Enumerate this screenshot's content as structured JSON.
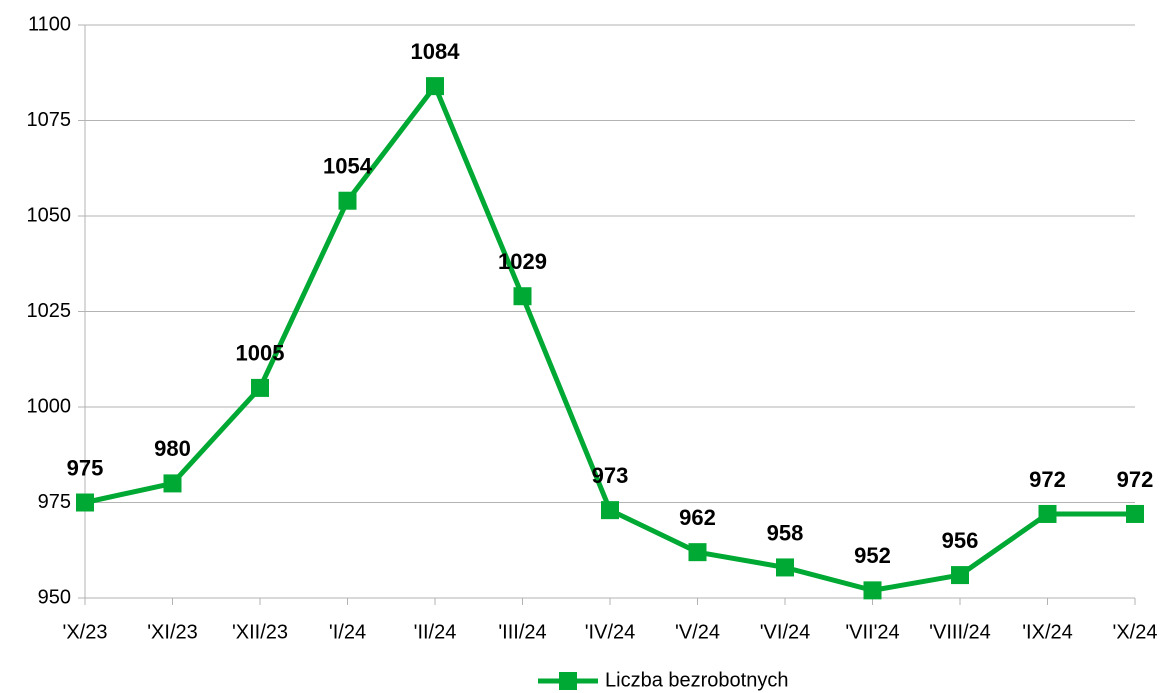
{
  "chart_data": {
    "type": "line",
    "categories": [
      "'X/23",
      "'XI/23",
      "'XII/23",
      "'I/24",
      "'II/24",
      "'III/24",
      "'IV/24",
      "'V/24",
      "'VI/24",
      "'VII'24",
      "'VIII/24",
      "'IX/24",
      "'X/24"
    ],
    "series": [
      {
        "name": "Liczba bezrobotnych",
        "color": "#00a933",
        "values": [
          975,
          980,
          1005,
          1054,
          1084,
          1029,
          973,
          962,
          958,
          952,
          956,
          972,
          972
        ]
      }
    ],
    "ylim": [
      950,
      1100
    ],
    "yticks": [
      950,
      975,
      1000,
      1025,
      1050,
      1075,
      1100
    ],
    "grid": true,
    "legend": "bottom"
  }
}
